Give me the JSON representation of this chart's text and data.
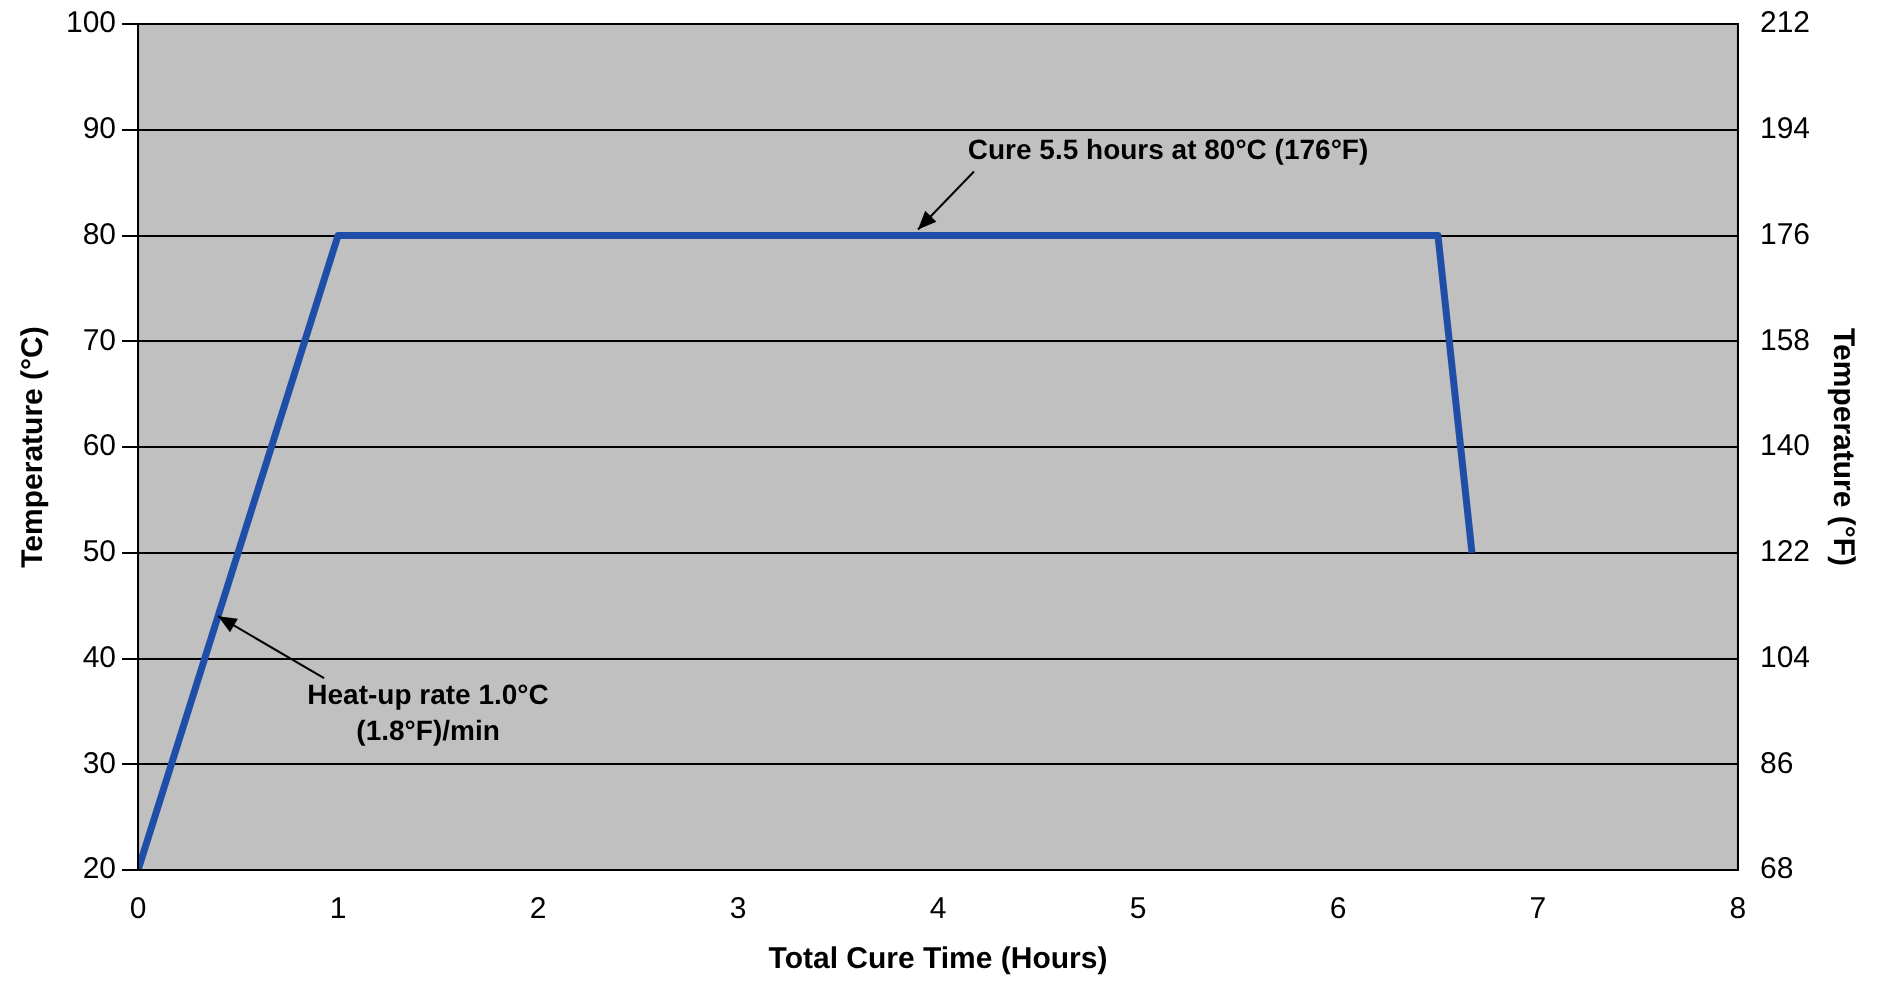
{
  "chart_data": {
    "type": "line",
    "xlabel": "Total Cure Time (Hours)",
    "ylabel": "Temperature (°C)",
    "y2label": "Temperature (°F)",
    "x": [
      0,
      1,
      6.5,
      6.67
    ],
    "series": [
      {
        "color": "#1f4ea8",
        "values": [
          20,
          80,
          80,
          50
        ]
      }
    ],
    "xlim": [
      0,
      8
    ],
    "xticks": [
      0,
      1,
      2,
      3,
      4,
      5,
      6,
      7,
      8
    ],
    "ylim": [
      20,
      100
    ],
    "yticks": [
      20,
      30,
      40,
      50,
      60,
      70,
      80,
      90,
      100
    ],
    "y2lim": [
      68,
      212
    ],
    "y2ticks": [
      68,
      86,
      104,
      122,
      140,
      158,
      176,
      194,
      212
    ],
    "grid": "y",
    "legend": false,
    "marker": "none",
    "line_style": "solid",
    "annotations": [
      {
        "text": "Cure 5.5 hours at 80°C (176°F)",
        "x": 3.9,
        "y": 80
      },
      {
        "text": "Heat-up rate 1.0°C\n(1.8°F)/min",
        "x": 0.4,
        "y": 44
      }
    ]
  }
}
